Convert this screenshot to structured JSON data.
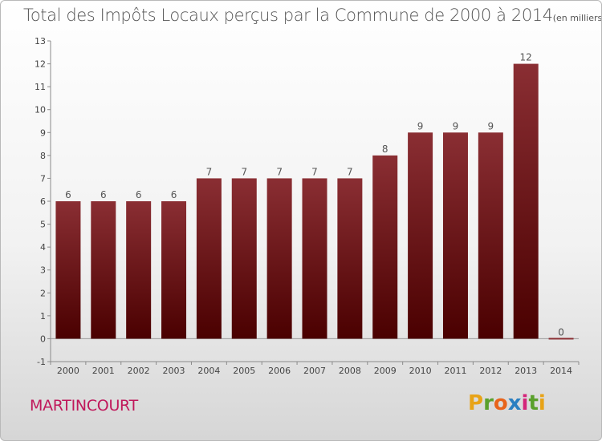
{
  "chart_data": {
    "type": "bar",
    "title": "Total des Impôts Locaux perçus par la Commune de 2000 à 2014",
    "subtitle": "(en milliers d'€)",
    "categories": [
      "2000",
      "2001",
      "2002",
      "2003",
      "2004",
      "2005",
      "2006",
      "2007",
      "2008",
      "2009",
      "2010",
      "2011",
      "2012",
      "2013",
      "2014"
    ],
    "values": [
      6,
      6,
      6,
      6,
      7,
      7,
      7,
      7,
      7,
      8,
      9,
      9,
      9,
      12,
      0
    ],
    "value_labels": [
      "6",
      "6",
      "6",
      "6",
      "7",
      "7",
      "7",
      "7",
      "7",
      "8",
      "9",
      "9",
      "9",
      "12",
      "0"
    ],
    "y_ticks": [
      "-1",
      "0",
      "1",
      "2",
      "3",
      "4",
      "5",
      "6",
      "7",
      "8",
      "9",
      "10",
      "11",
      "12",
      "13"
    ],
    "ylim": [
      -1,
      13
    ],
    "xlabel": "",
    "ylabel": "",
    "grid": false,
    "bar_color_top": "#8a2e33",
    "bar_color_bottom": "#4a0000"
  },
  "commune": "MARTINCOURT",
  "brand": {
    "letters": [
      "P",
      "r",
      "o",
      "x",
      "i",
      "t",
      "i"
    ],
    "colors": [
      "#e8a317",
      "#5aa02c",
      "#e8641b",
      "#2a7fc1",
      "#d4257a",
      "#5aa02c",
      "#e8a317"
    ]
  }
}
